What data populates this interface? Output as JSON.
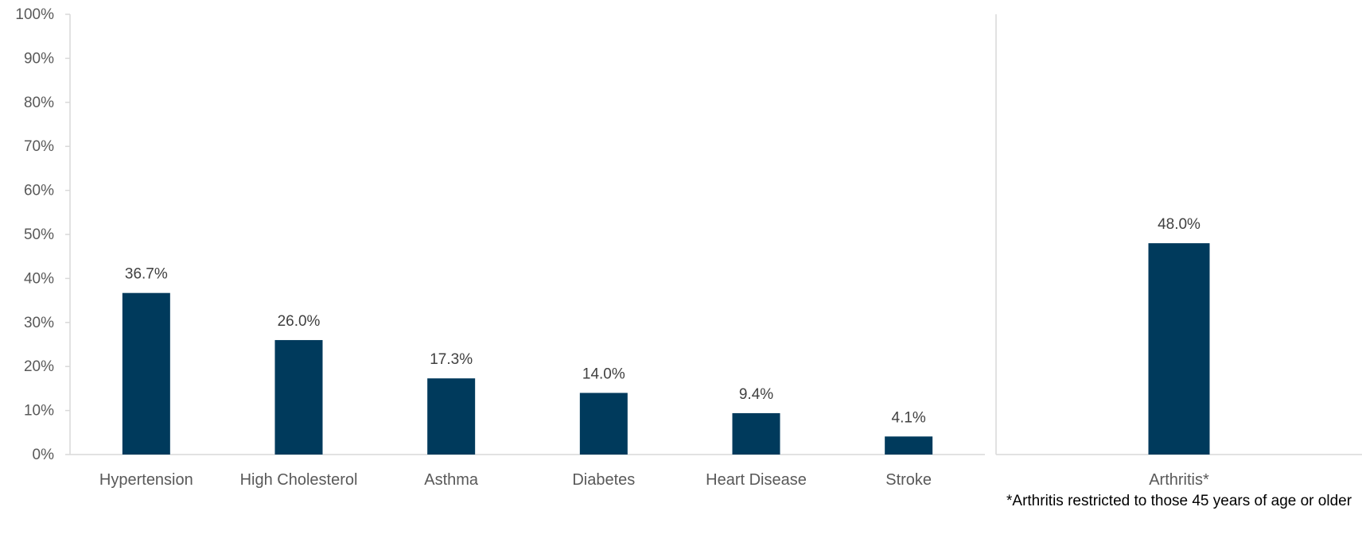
{
  "chart_data": [
    {
      "type": "bar",
      "categories": [
        "Hypertension",
        "High Cholesterol",
        "Asthma",
        "Diabetes",
        "Heart Disease",
        "Stroke"
      ],
      "values": [
        36.7,
        26.0,
        17.3,
        14.0,
        9.4,
        4.1
      ],
      "data_labels": [
        "36.7%",
        "26.0%",
        "17.3%",
        "14.0%",
        "9.4%",
        "4.1%"
      ],
      "y_ticks": [
        "0%",
        "10%",
        "20%",
        "30%",
        "40%",
        "50%",
        "60%",
        "70%",
        "80%",
        "90%",
        "100%"
      ],
      "ylim": [
        0,
        100
      ],
      "title": "",
      "xlabel": "",
      "ylabel": "",
      "grid": false,
      "bar_color": "#003a5c"
    },
    {
      "type": "bar",
      "categories": [
        "Arthritis*"
      ],
      "values": [
        48.0
      ],
      "data_labels": [
        "48.0%"
      ],
      "ylim": [
        0,
        100
      ],
      "title": "",
      "xlabel": "",
      "ylabel": "",
      "grid": false,
      "bar_color": "#003a5c"
    }
  ],
  "footnote": "*Arthritis restricted to those 45 years of age or older"
}
